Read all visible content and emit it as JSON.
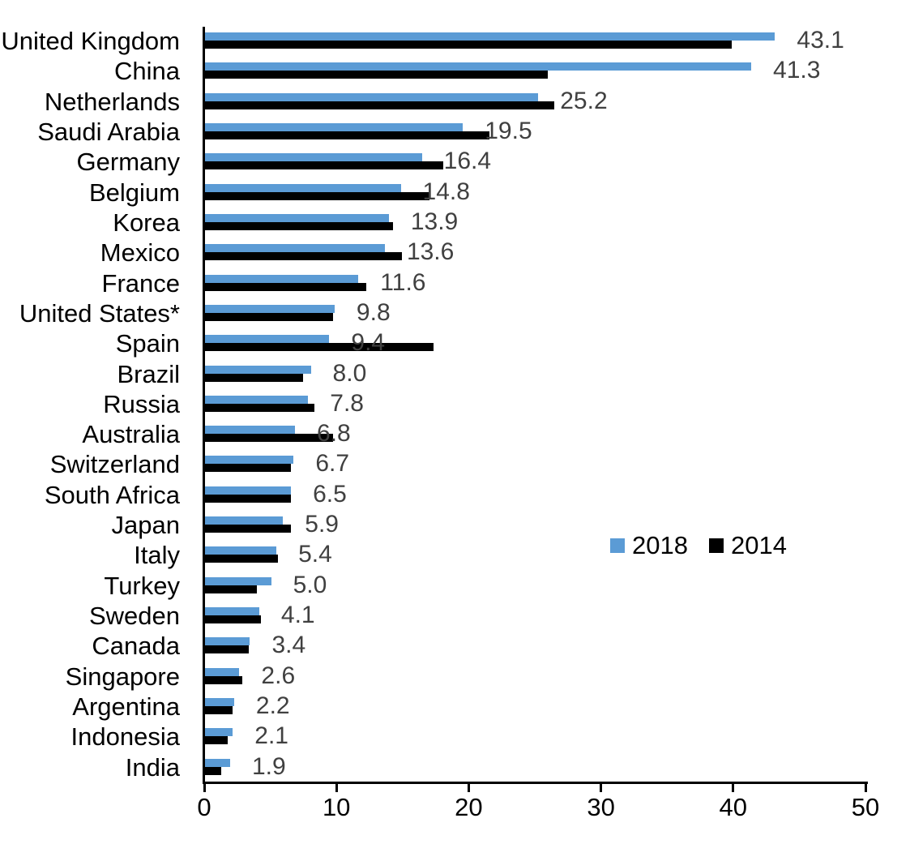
{
  "chart_data": {
    "type": "bar",
    "orientation": "horizontal",
    "categories": [
      "United Kingdom",
      "China",
      "Netherlands",
      "Saudi Arabia",
      "Germany",
      "Belgium",
      "Korea",
      "Mexico",
      "France",
      "United States*",
      "Spain",
      "Brazil",
      "Russia",
      "Australia",
      "Switzerland",
      "South Africa",
      "Japan",
      "Italy",
      "Turkey",
      "Sweden",
      "Canada",
      "Singapore",
      "Argentina",
      "Indonesia",
      "India"
    ],
    "series": [
      {
        "name": "2018",
        "color": "#5B9BD5",
        "values": [
          43.1,
          41.3,
          25.2,
          19.5,
          16.4,
          14.8,
          13.9,
          13.6,
          11.6,
          9.8,
          9.4,
          8.0,
          7.8,
          6.8,
          6.7,
          6.5,
          5.9,
          5.4,
          5.0,
          4.1,
          3.4,
          2.6,
          2.2,
          2.1,
          1.9
        ],
        "data_labels": [
          "43.1",
          "41.3",
          "25.2",
          "19.5",
          "16.4",
          "14.8",
          "13.9",
          "13.6",
          "11.6",
          "9.8",
          "9.4",
          "8.0",
          "7.8",
          "6.8",
          "6.7",
          "6.5",
          "5.9",
          "5.4",
          "5.0",
          "4.1",
          "3.4",
          "2.6",
          "2.2",
          "2.1",
          "1.9"
        ]
      },
      {
        "name": "2014",
        "color": "#000000",
        "values": [
          39.8,
          25.9,
          26.4,
          21.5,
          18.0,
          17.0,
          14.2,
          14.9,
          12.2,
          9.7,
          17.3,
          7.4,
          8.3,
          9.7,
          6.5,
          6.5,
          6.5,
          5.5,
          3.9,
          4.2,
          3.3,
          2.8,
          2.1,
          1.7,
          1.2
        ]
      }
    ],
    "xlim": [
      0,
      50
    ],
    "x_ticks": [
      "0",
      "10",
      "20",
      "30",
      "40",
      "50"
    ],
    "grid": false,
    "legend": {
      "position": "middle-right",
      "entries": [
        {
          "label": "2018",
          "color": "#5B9BD5"
        },
        {
          "label": "2014",
          "color": "#000000"
        }
      ]
    },
    "data_label_color": "#404040",
    "axis_color": "#000000"
  }
}
